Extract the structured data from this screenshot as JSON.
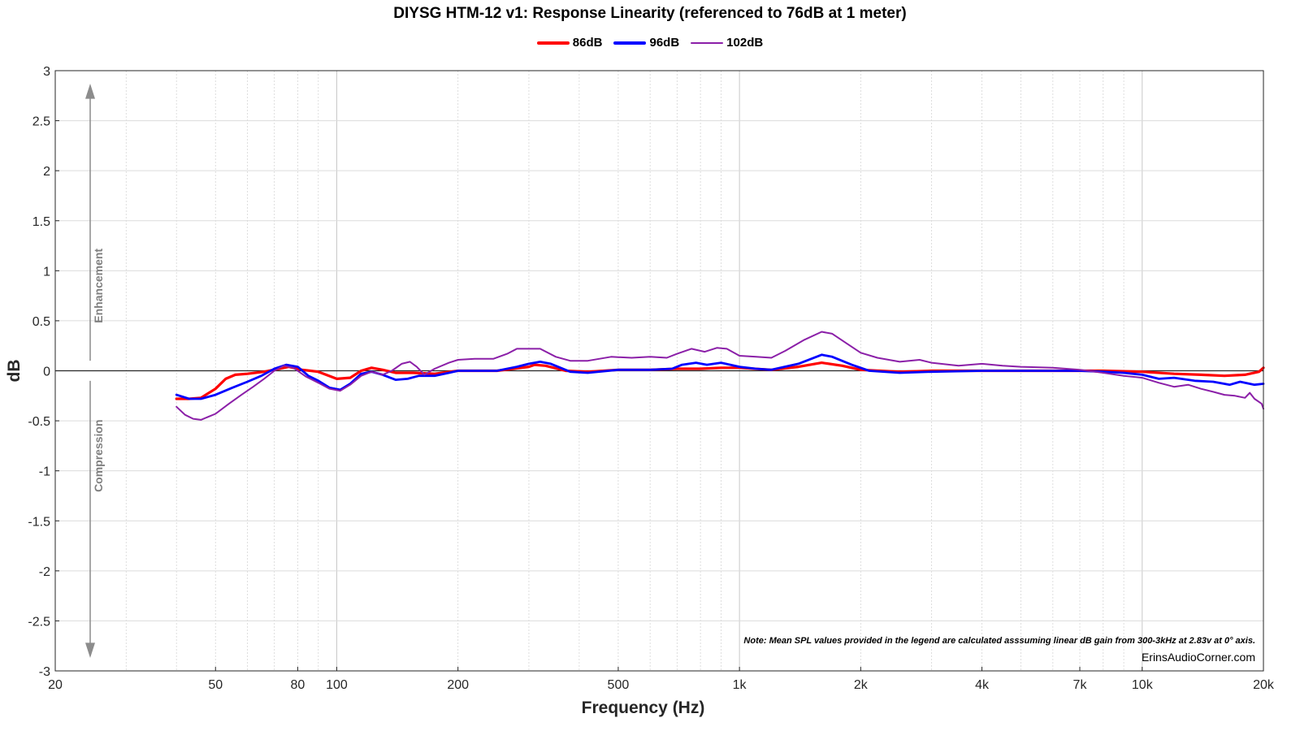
{
  "chart_data": {
    "type": "line",
    "title": "DIYSG HTM-12 v1: Response Linearity (referenced to 76dB at 1 meter)",
    "xlabel": "Frequency (Hz)",
    "ylabel": "dB",
    "xscale": "log",
    "xlim": [
      20,
      20000
    ],
    "ylim": [
      -3,
      3
    ],
    "grid": true,
    "legend_position": "top-center",
    "x_tick_labels": [
      "20",
      "50",
      "80",
      "100",
      "200",
      "500",
      "1k",
      "2k",
      "4k",
      "7k",
      "10k",
      "20k"
    ],
    "x_tick_values": [
      20,
      50,
      80,
      100,
      200,
      500,
      1000,
      2000,
      4000,
      7000,
      10000,
      20000
    ],
    "y_ticks": [
      3,
      2.5,
      2,
      1.5,
      1,
      0.5,
      0,
      -0.5,
      -1,
      -1.5,
      -2,
      -2.5,
      -3
    ],
    "annotations": {
      "enhancement": "Enhancement",
      "compression": "Compression",
      "note": "Note: Mean SPL values provided in the legend are calculated asssuming linear dB gain from 300-3kHz at 2.83v at 0° axis.",
      "credit": "ErinsAudioCorner.com"
    },
    "series": [
      {
        "name": "86dB",
        "color": "#ff0000",
        "points": [
          [
            40,
            -0.28
          ],
          [
            43,
            -0.28
          ],
          [
            46,
            -0.27
          ],
          [
            50,
            -0.18
          ],
          [
            53,
            -0.08
          ],
          [
            56,
            -0.04
          ],
          [
            60,
            -0.03
          ],
          [
            66,
            -0.01
          ],
          [
            72,
            0.02
          ],
          [
            76,
            0.04
          ],
          [
            82,
            0.01
          ],
          [
            90,
            -0.01
          ],
          [
            100,
            -0.08
          ],
          [
            108,
            -0.07
          ],
          [
            115,
            0.0
          ],
          [
            122,
            0.03
          ],
          [
            130,
            0.01
          ],
          [
            140,
            -0.02
          ],
          [
            155,
            -0.02
          ],
          [
            175,
            -0.03
          ],
          [
            200,
            0.0
          ],
          [
            250,
            0.0
          ],
          [
            300,
            0.04
          ],
          [
            310,
            0.06
          ],
          [
            330,
            0.05
          ],
          [
            370,
            0.0
          ],
          [
            420,
            -0.01
          ],
          [
            500,
            0.01
          ],
          [
            600,
            0.01
          ],
          [
            700,
            0.02
          ],
          [
            800,
            0.02
          ],
          [
            900,
            0.03
          ],
          [
            1000,
            0.03
          ],
          [
            1200,
            0.01
          ],
          [
            1400,
            0.04
          ],
          [
            1600,
            0.08
          ],
          [
            1800,
            0.05
          ],
          [
            2000,
            0.01
          ],
          [
            2500,
            -0.01
          ],
          [
            3000,
            0.0
          ],
          [
            4000,
            0.0
          ],
          [
            5000,
            0.0
          ],
          [
            6000,
            0.0
          ],
          [
            7000,
            0.0
          ],
          [
            8000,
            0.0
          ],
          [
            10000,
            -0.01
          ],
          [
            12000,
            -0.03
          ],
          [
            14000,
            -0.04
          ],
          [
            16000,
            -0.05
          ],
          [
            18000,
            -0.04
          ],
          [
            19500,
            -0.01
          ],
          [
            20000,
            0.03
          ]
        ]
      },
      {
        "name": "96dB",
        "color": "#0000ff",
        "points": [
          [
            40,
            -0.24
          ],
          [
            43,
            -0.28
          ],
          [
            46,
            -0.28
          ],
          [
            50,
            -0.24
          ],
          [
            55,
            -0.17
          ],
          [
            60,
            -0.11
          ],
          [
            65,
            -0.05
          ],
          [
            70,
            0.02
          ],
          [
            75,
            0.06
          ],
          [
            80,
            0.04
          ],
          [
            85,
            -0.05
          ],
          [
            90,
            -0.1
          ],
          [
            96,
            -0.17
          ],
          [
            102,
            -0.19
          ],
          [
            108,
            -0.13
          ],
          [
            115,
            -0.03
          ],
          [
            122,
            -0.01
          ],
          [
            130,
            -0.04
          ],
          [
            140,
            -0.09
          ],
          [
            150,
            -0.08
          ],
          [
            160,
            -0.05
          ],
          [
            175,
            -0.05
          ],
          [
            190,
            -0.02
          ],
          [
            200,
            0.0
          ],
          [
            250,
            0.0
          ],
          [
            280,
            0.04
          ],
          [
            300,
            0.07
          ],
          [
            320,
            0.09
          ],
          [
            340,
            0.07
          ],
          [
            380,
            -0.01
          ],
          [
            420,
            -0.02
          ],
          [
            500,
            0.01
          ],
          [
            600,
            0.01
          ],
          [
            680,
            0.02
          ],
          [
            720,
            0.06
          ],
          [
            780,
            0.08
          ],
          [
            830,
            0.06
          ],
          [
            900,
            0.08
          ],
          [
            1000,
            0.04
          ],
          [
            1100,
            0.02
          ],
          [
            1200,
            0.01
          ],
          [
            1400,
            0.07
          ],
          [
            1600,
            0.16
          ],
          [
            1700,
            0.14
          ],
          [
            1900,
            0.06
          ],
          [
            2100,
            0.0
          ],
          [
            2500,
            -0.02
          ],
          [
            3000,
            -0.01
          ],
          [
            4000,
            0.0
          ],
          [
            5000,
            0.0
          ],
          [
            6000,
            0.0
          ],
          [
            7000,
            0.0
          ],
          [
            8000,
            -0.01
          ],
          [
            9000,
            -0.02
          ],
          [
            10000,
            -0.04
          ],
          [
            11000,
            -0.08
          ],
          [
            12000,
            -0.07
          ],
          [
            13500,
            -0.1
          ],
          [
            15000,
            -0.11
          ],
          [
            16500,
            -0.14
          ],
          [
            17500,
            -0.11
          ],
          [
            19000,
            -0.14
          ],
          [
            20000,
            -0.13
          ]
        ]
      },
      {
        "name": "102dB",
        "color": "#8b1fa8",
        "points": [
          [
            40,
            -0.36
          ],
          [
            42,
            -0.44
          ],
          [
            44,
            -0.48
          ],
          [
            46,
            -0.49
          ],
          [
            50,
            -0.43
          ],
          [
            54,
            -0.33
          ],
          [
            58,
            -0.24
          ],
          [
            62,
            -0.16
          ],
          [
            66,
            -0.08
          ],
          [
            70,
            0.0
          ],
          [
            74,
            0.05
          ],
          [
            78,
            0.03
          ],
          [
            84,
            -0.06
          ],
          [
            90,
            -0.12
          ],
          [
            96,
            -0.18
          ],
          [
            102,
            -0.2
          ],
          [
            108,
            -0.14
          ],
          [
            115,
            -0.05
          ],
          [
            122,
            -0.01
          ],
          [
            130,
            -0.04
          ],
          [
            137,
            0.0
          ],
          [
            145,
            0.07
          ],
          [
            152,
            0.09
          ],
          [
            158,
            0.04
          ],
          [
            165,
            -0.04
          ],
          [
            175,
            0.02
          ],
          [
            190,
            0.08
          ],
          [
            200,
            0.11
          ],
          [
            220,
            0.12
          ],
          [
            245,
            0.12
          ],
          [
            265,
            0.17
          ],
          [
            280,
            0.22
          ],
          [
            300,
            0.22
          ],
          [
            320,
            0.22
          ],
          [
            350,
            0.14
          ],
          [
            380,
            0.1
          ],
          [
            420,
            0.1
          ],
          [
            480,
            0.14
          ],
          [
            540,
            0.13
          ],
          [
            600,
            0.14
          ],
          [
            660,
            0.13
          ],
          [
            700,
            0.17
          ],
          [
            760,
            0.22
          ],
          [
            820,
            0.19
          ],
          [
            880,
            0.23
          ],
          [
            930,
            0.22
          ],
          [
            1000,
            0.15
          ],
          [
            1100,
            0.14
          ],
          [
            1200,
            0.13
          ],
          [
            1300,
            0.2
          ],
          [
            1450,
            0.31
          ],
          [
            1600,
            0.39
          ],
          [
            1700,
            0.37
          ],
          [
            1850,
            0.27
          ],
          [
            2000,
            0.18
          ],
          [
            2200,
            0.13
          ],
          [
            2500,
            0.09
          ],
          [
            2800,
            0.11
          ],
          [
            3000,
            0.08
          ],
          [
            3500,
            0.05
          ],
          [
            4000,
            0.07
          ],
          [
            4500,
            0.05
          ],
          [
            5000,
            0.04
          ],
          [
            6000,
            0.03
          ],
          [
            7000,
            0.01
          ],
          [
            8000,
            -0.02
          ],
          [
            9000,
            -0.05
          ],
          [
            10000,
            -0.07
          ],
          [
            11000,
            -0.12
          ],
          [
            12000,
            -0.16
          ],
          [
            13000,
            -0.14
          ],
          [
            14000,
            -0.18
          ],
          [
            15000,
            -0.21
          ],
          [
            16000,
            -0.24
          ],
          [
            17000,
            -0.25
          ],
          [
            18000,
            -0.27
          ],
          [
            18500,
            -0.22
          ],
          [
            19000,
            -0.28
          ],
          [
            19800,
            -0.33
          ],
          [
            20000,
            -0.38
          ]
        ]
      }
    ]
  }
}
